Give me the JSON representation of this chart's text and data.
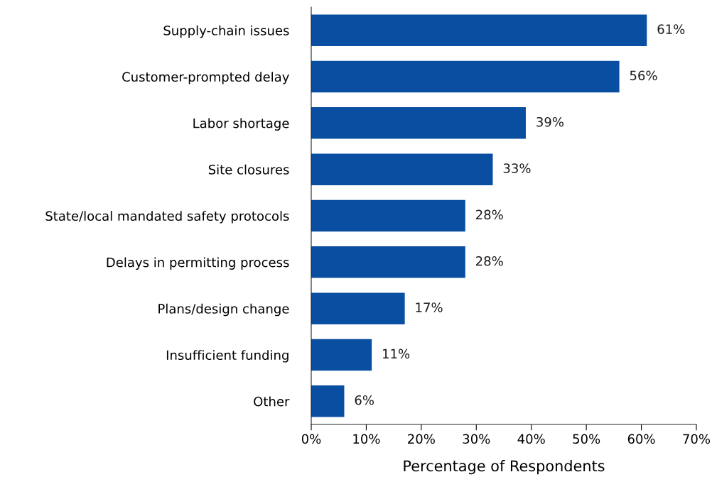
{
  "chart_data": {
    "type": "bar",
    "orientation": "horizontal",
    "xlabel": "Percentage of Respondents",
    "categories": [
      "Supply-chain issues",
      "Customer-prompted delay",
      "Labor shortage",
      "Site closures",
      "State/local mandated safety protocols",
      "Delays in permitting process",
      "Plans/design change",
      "Insufficient funding",
      "Other"
    ],
    "values": [
      61,
      56,
      39,
      33,
      28,
      28,
      17,
      11,
      6
    ],
    "value_labels": [
      "61%",
      "56%",
      "39%",
      "33%",
      "28%",
      "28%",
      "17%",
      "11%",
      "6%"
    ],
    "color": "#0a4ea2",
    "xlim": [
      0,
      70
    ],
    "xticks": [
      {
        "value": 0,
        "label": "0%"
      },
      {
        "value": 10,
        "label": "10%"
      },
      {
        "value": 20,
        "label": "20%"
      },
      {
        "value": 30,
        "label": "30%"
      },
      {
        "value": 40,
        "label": "40%"
      },
      {
        "value": 50,
        "label": "50%"
      },
      {
        "value": 60,
        "label": "60%"
      },
      {
        "value": 70,
        "label": "70%"
      }
    ],
    "grid": false,
    "legend": false
  }
}
